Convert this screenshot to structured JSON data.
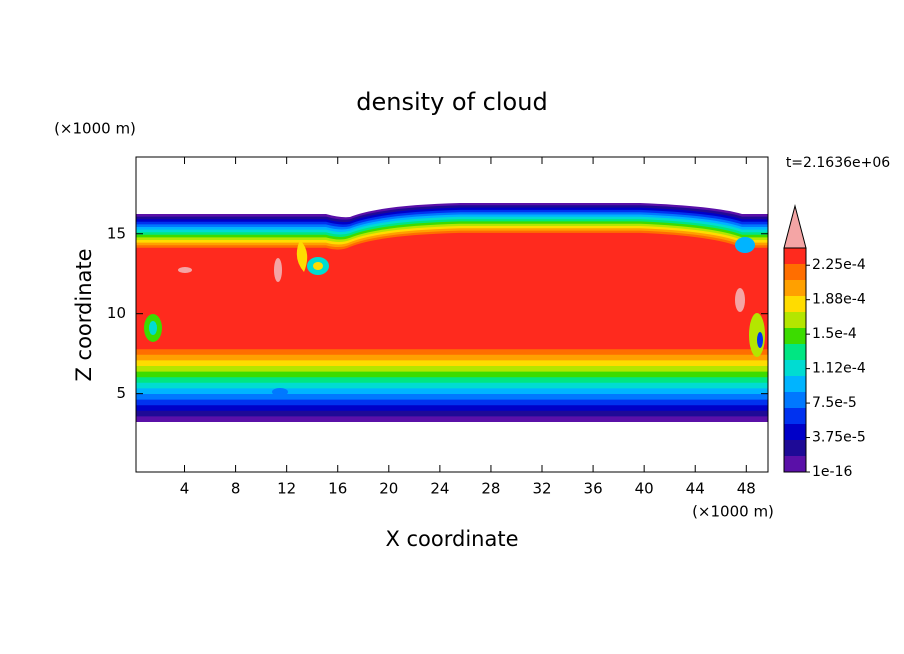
{
  "chart_data": {
    "type": "contour",
    "title": "density of cloud",
    "xlabel": "X coordinate",
    "ylabel": "Z coordinate",
    "x_unit": "(×1000 m)",
    "y_unit": "(×1000 m)",
    "annotation": "t=2.1636e+06",
    "xlim": [
      0.2,
      49.7
    ],
    "ylim": [
      0.1,
      19.8
    ],
    "xticks": [
      4,
      8,
      12,
      16,
      20,
      24,
      28,
      32,
      36,
      40,
      44,
      48
    ],
    "yticks": [
      5,
      10,
      15
    ],
    "colorbar": {
      "lim": [
        1e-16,
        0.00024375
      ],
      "ticks": [
        {
          "value": 1e-16,
          "label": "1e-16"
        },
        {
          "value": 3.75e-05,
          "label": "3.75e-5"
        },
        {
          "value": 7.5e-05,
          "label": "7.5e-5"
        },
        {
          "value": 0.0001125,
          "label": "1.12e-4"
        },
        {
          "value": 0.00015,
          "label": "1.5e-4"
        },
        {
          "value": 0.0001875,
          "label": "1.88e-4"
        },
        {
          "value": 0.000225,
          "label": "2.25e-4"
        }
      ],
      "colors": [
        "#5a10a8",
        "#1e0a96",
        "#0000c8",
        "#0032f0",
        "#0078ff",
        "#00b4ff",
        "#00dcd2",
        "#00e682",
        "#3cdc00",
        "#b4e600",
        "#ffdc00",
        "#ffa000",
        "#ff6e00",
        "#ff2a1e"
      ],
      "extend_color": "#f4a5a5"
    }
  }
}
